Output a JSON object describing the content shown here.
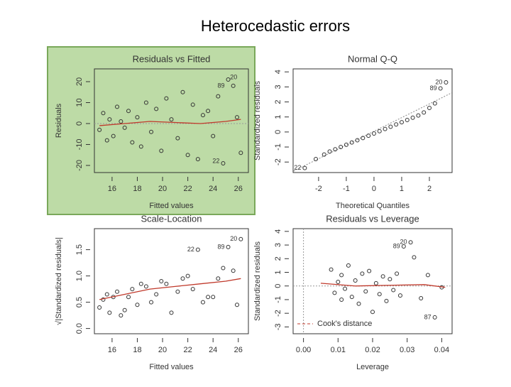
{
  "title": "Heterocedastic errors",
  "chart_data": [
    {
      "type": "scatter",
      "title": "Residuals vs Fitted",
      "x_label": "Fitted values",
      "y_label": "Residuals",
      "highlight": "#bddba6",
      "point_color": "#333333",
      "x": [
        15.0,
        15.3,
        15.6,
        15.8,
        16.1,
        16.4,
        16.7,
        17.0,
        17.3,
        17.6,
        18.0,
        18.3,
        18.7,
        19.1,
        19.5,
        19.9,
        20.3,
        20.7,
        21.2,
        21.6,
        22.0,
        22.4,
        22.8,
        23.2,
        23.6,
        24.0,
        24.4,
        24.8,
        25.2,
        25.6,
        25.9,
        26.2
      ],
      "y": [
        -3,
        5,
        -8,
        2,
        -6,
        8,
        1,
        -2,
        6,
        -9,
        3,
        -11,
        10,
        -4,
        7,
        -13,
        12,
        2,
        -7,
        15,
        -15,
        9,
        -17,
        4,
        6,
        -6,
        13,
        -19,
        21,
        18,
        3,
        -14
      ],
      "smooth": {
        "color": "#c0392b",
        "x": [
          15,
          17,
          19,
          21,
          23,
          25,
          26.2
        ],
        "y": [
          -1,
          0,
          1,
          0.5,
          0,
          1,
          2
        ]
      },
      "hline": 0,
      "point_labels": [
        {
          "text": "20",
          "x": 26.2,
          "y": 22
        },
        {
          "text": "89",
          "x": 25.2,
          "y": 18
        },
        {
          "text": "22",
          "x": 24.8,
          "y": -18
        }
      ],
      "xlim": [
        14.6,
        26.8
      ],
      "ylim": [
        -23.4,
        26.1
      ],
      "xticks": [
        16,
        18,
        20,
        22,
        24,
        26
      ],
      "yticks": [
        -20,
        -10,
        0,
        10,
        20
      ]
    },
    {
      "type": "scatter",
      "title": "Normal Q-Q",
      "x_label": "Theoretical Quantiles",
      "y_label": "Standardized residuals",
      "point_color": "#333333",
      "x": [
        -2.5,
        -2.1,
        -1.8,
        -1.6,
        -1.4,
        -1.2,
        -1.0,
        -0.8,
        -0.6,
        -0.4,
        -0.2,
        0,
        0.2,
        0.4,
        0.6,
        0.8,
        1.0,
        1.2,
        1.4,
        1.6,
        1.8,
        2.0,
        2.2,
        2.4,
        2.6
      ],
      "y": [
        -2.4,
        -1.8,
        -1.5,
        -1.3,
        -1.15,
        -1.0,
        -0.85,
        -0.7,
        -0.55,
        -0.4,
        -0.25,
        -0.1,
        0.05,
        0.2,
        0.35,
        0.5,
        0.65,
        0.8,
        0.95,
        1.1,
        1.3,
        1.6,
        1.9,
        2.9,
        3.3
      ],
      "reference": {
        "color": "#888888",
        "x": [
          -2.9,
          2.8
        ],
        "y": [
          -2.6,
          2.6
        ]
      },
      "point_labels": [
        {
          "text": "22",
          "x": -2.5,
          "y": -2.4
        },
        {
          "text": "89",
          "x": 2.4,
          "y": 2.9
        },
        {
          "text": "20",
          "x": 2.6,
          "y": 3.3
        }
      ],
      "xlim": [
        -2.92,
        2.82
      ],
      "ylim": [
        -2.7,
        4.2
      ],
      "xticks": [
        -2,
        -1,
        0,
        1,
        2
      ],
      "yticks": [
        -2,
        -1,
        0,
        1,
        2,
        3,
        4
      ]
    },
    {
      "type": "scatter",
      "title": "Scale-Location",
      "x_label": "Fitted values",
      "y_label": "√|Standardized residuals|",
      "point_color": "#333333",
      "x": [
        15.0,
        15.3,
        15.6,
        15.8,
        16.1,
        16.4,
        16.7,
        17.0,
        17.3,
        17.6,
        18.0,
        18.3,
        18.7,
        19.1,
        19.5,
        19.9,
        20.3,
        20.7,
        21.2,
        21.6,
        22.0,
        22.4,
        22.8,
        23.2,
        23.6,
        24.0,
        24.4,
        24.8,
        25.2,
        25.6,
        25.9,
        26.2
      ],
      "y": [
        0.4,
        0.55,
        0.65,
        0.3,
        0.6,
        0.7,
        0.25,
        0.35,
        0.6,
        0.75,
        0.45,
        0.85,
        0.8,
        0.5,
        0.65,
        0.9,
        0.85,
        0.3,
        0.7,
        0.95,
        1.0,
        0.75,
        1.5,
        0.5,
        0.6,
        0.6,
        0.95,
        1.15,
        1.55,
        1.1,
        0.45,
        1.7
      ],
      "smooth": {
        "color": "#c0392b",
        "x": [
          15,
          17,
          19,
          21,
          23,
          25,
          26.2
        ],
        "y": [
          0.55,
          0.65,
          0.75,
          0.8,
          0.85,
          0.9,
          0.95
        ]
      },
      "point_labels": [
        {
          "text": "20",
          "x": 26.2,
          "y": 1.7
        },
        {
          "text": "89",
          "x": 25.2,
          "y": 1.55
        },
        {
          "text": "22",
          "x": 22.8,
          "y": 1.5
        }
      ],
      "xlim": [
        14.6,
        26.8
      ],
      "ylim": [
        -0.1,
        1.9
      ],
      "xticks": [
        16,
        18,
        20,
        22,
        24,
        26
      ],
      "yticks": [
        {
          "value": 0,
          "label": "0.0"
        },
        {
          "value": 0.5,
          "label": "0.5"
        },
        {
          "value": 1,
          "label": "1.0"
        },
        {
          "value": 1.5,
          "label": "1.5"
        }
      ]
    },
    {
      "type": "scatter",
      "title": "Residuals vs Leverage",
      "x_label": "Leverage",
      "y_label": "Standardized residuals",
      "point_color": "#333333",
      "x": [
        0.008,
        0.009,
        0.01,
        0.011,
        0.011,
        0.012,
        0.013,
        0.014,
        0.015,
        0.016,
        0.017,
        0.018,
        0.019,
        0.02,
        0.021,
        0.022,
        0.023,
        0.024,
        0.025,
        0.026,
        0.027,
        0.028,
        0.029,
        0.031,
        0.032,
        0.034,
        0.036,
        0.038,
        0.04
      ],
      "y": [
        1.2,
        -0.5,
        0.3,
        -1.0,
        0.8,
        -0.2,
        1.5,
        -0.8,
        0.4,
        -1.3,
        0.9,
        -0.4,
        1.1,
        -1.9,
        0.2,
        -0.6,
        0.7,
        -1.1,
        0.5,
        -0.3,
        0.9,
        -0.7,
        2.9,
        3.2,
        2.1,
        -0.9,
        0.8,
        -2.3,
        -0.1
      ],
      "smooth": {
        "color": "#c0392b",
        "x": [
          0.005,
          0.015,
          0.025,
          0.035,
          0.041
        ],
        "y": [
          0.2,
          0,
          0.05,
          0.1,
          -0.1
        ]
      },
      "hline": 0,
      "vline": 0,
      "point_labels": [
        {
          "text": "89",
          "x": 0.029,
          "y": 2.9
        },
        {
          "text": "20",
          "x": 0.031,
          "y": 3.2
        },
        {
          "text": "87",
          "x": 0.038,
          "y": -2.3
        }
      ],
      "legend": {
        "text": "Cook's distance",
        "position": "bottom-left",
        "color": "#c0392b"
      },
      "xlim": [
        -0.003,
        0.043
      ],
      "ylim": [
        -3.5,
        4.2
      ],
      "xticks": [
        {
          "value": 0,
          "label": "0.00"
        },
        {
          "value": 0.01,
          "label": "0.01"
        },
        {
          "value": 0.02,
          "label": "0.02"
        },
        {
          "value": 0.03,
          "label": "0.03"
        },
        {
          "value": 0.04,
          "label": "0.04"
        }
      ],
      "yticks": [
        -3,
        -2,
        -1,
        0,
        1,
        2,
        3,
        4
      ]
    }
  ]
}
